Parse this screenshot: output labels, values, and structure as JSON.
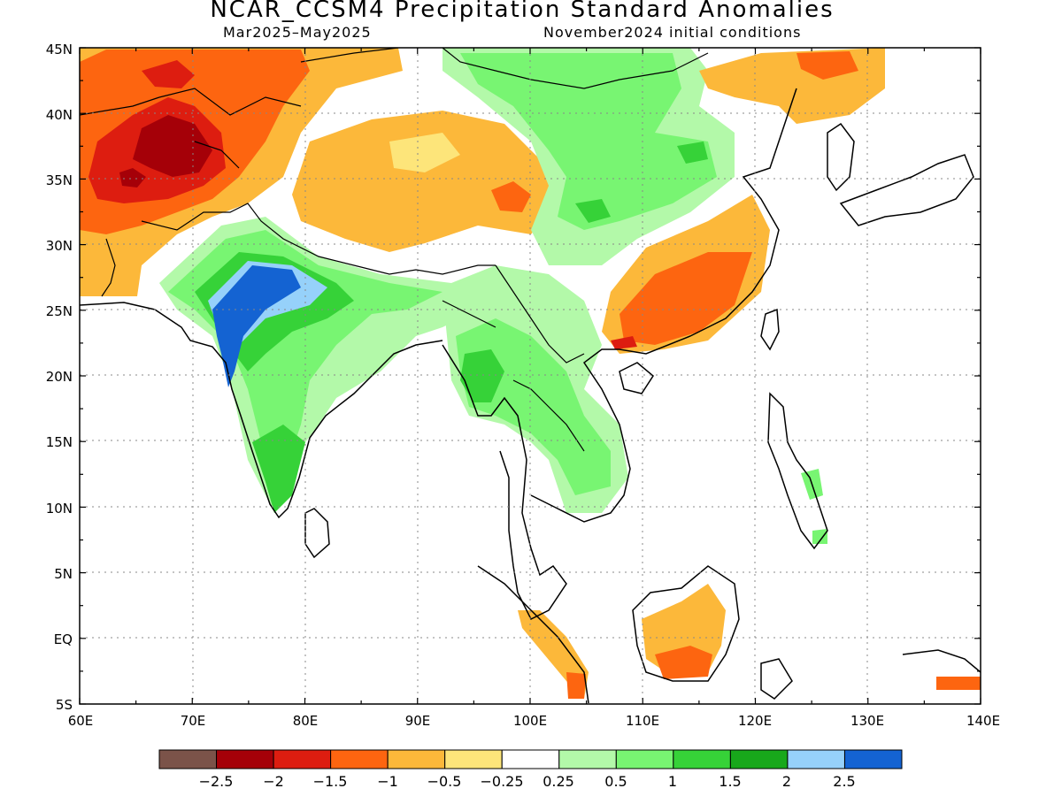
{
  "title": "NCAR_CCSM4 Precipitation Standard Anomalies",
  "subtitle_left": "Mar2025–May2025",
  "subtitle_right": "November2024 initial conditions",
  "lon_labels": [
    "60E",
    "70E",
    "80E",
    "90E",
    "100E",
    "110E",
    "120E",
    "130E",
    "140E"
  ],
  "lat_labels": [
    "45N",
    "40N",
    "35N",
    "30N",
    "25N",
    "20N",
    "15N",
    "10N",
    "5N",
    "EQ",
    "5S"
  ],
  "colorbar": {
    "colors": [
      "#7b5349",
      "#a50008",
      "#dd1d10",
      "#fd6510",
      "#fcb83a",
      "#fde57a",
      "#ffffff",
      "#b3f9a9",
      "#78f572",
      "#36d238",
      "#18a81b",
      "#96d1fa",
      "#1463d2"
    ],
    "labels": [
      "−2.5",
      "−2",
      "−1.5",
      "−1",
      "−0.5",
      "−0.25",
      "0.25",
      "0.5",
      "1",
      "1.5",
      "2",
      "2.5"
    ]
  },
  "map_data": {
    "extent": {
      "lon": [
        60,
        140
      ],
      "lat": [
        -5,
        45
      ]
    },
    "regions": [
      {
        "name": "Iran-Afghanistan dry anomaly",
        "level": "-1",
        "color": "#fd6510"
      },
      {
        "name": "Afghanistan core",
        "level": "-2",
        "color": "#a50008"
      },
      {
        "name": "Tibet dry anomaly",
        "level": "-0.5",
        "color": "#fcb83a"
      },
      {
        "name": "Northwest India wet anomaly",
        "level": "2.5",
        "color": "#1463d2"
      },
      {
        "name": "South China dry anomaly",
        "level": "-1",
        "color": "#fd6510"
      },
      {
        "name": "North China wet anomaly",
        "level": "0.5",
        "color": "#78f572"
      },
      {
        "name": "Borneo dry anomaly",
        "level": "-0.5",
        "color": "#fcb83a"
      }
    ]
  }
}
